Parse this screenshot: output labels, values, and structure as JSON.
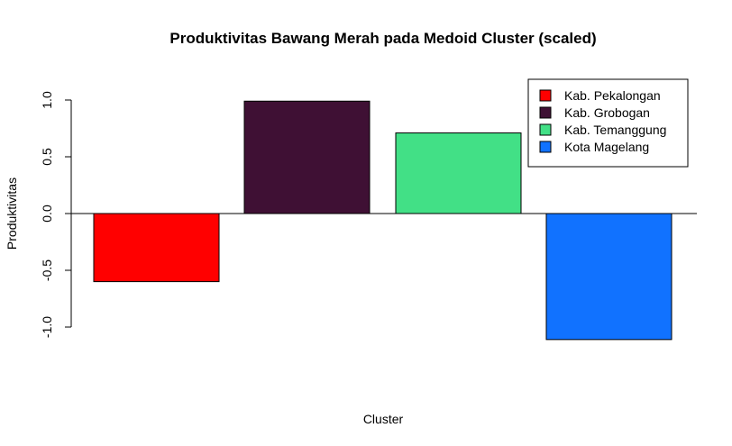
{
  "chart_data": {
    "type": "bar",
    "title": "Produktivitas Bawang Merah pada Medoid Cluster (scaled)",
    "xlabel": "Cluster",
    "ylabel": "Produktivitas",
    "categories": [
      "Kab. Pekalongan",
      "Kab. Grobogan",
      "Kab. Temanggung",
      "Kota Magelang"
    ],
    "values": [
      -0.6,
      0.99,
      0.71,
      -1.11
    ],
    "colors": [
      "#ff0000",
      "#3f1034",
      "#42e086",
      "#1172ff"
    ],
    "ylim": [
      -1.0,
      1.0
    ],
    "yticks": [
      -1.0,
      -0.5,
      0.0,
      0.5,
      1.0
    ],
    "ytick_labels": [
      "-1.0",
      "-0.5",
      "0.0",
      "0.5",
      "1.0"
    ],
    "baseline": 0,
    "grid": false,
    "legend": {
      "position": "top-right",
      "entries": [
        "Kab. Pekalongan",
        "Kab. Grobogan",
        "Kab. Temanggung",
        "Kota Magelang"
      ]
    }
  }
}
